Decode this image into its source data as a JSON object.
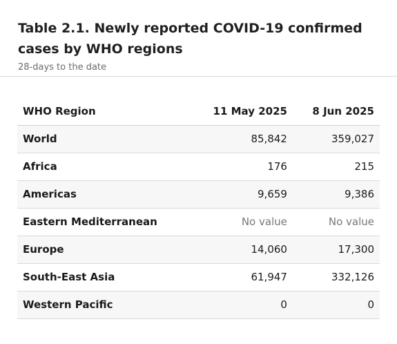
{
  "header": {
    "title": "Table 2.1. Newly reported COVID-19 confirmed cases by WHO regions",
    "subtitle": "28-days to the date"
  },
  "table": {
    "columns": [
      "WHO Region",
      "11 May 2025",
      "8 Jun 2025"
    ],
    "rows": [
      {
        "region": "World",
        "v1": "85,842",
        "v2": "359,027"
      },
      {
        "region": "Africa",
        "v1": "176",
        "v2": "215"
      },
      {
        "region": "Americas",
        "v1": "9,659",
        "v2": "9,386"
      },
      {
        "region": "Eastern Mediterranean",
        "v1": "No value",
        "v2": "No value"
      },
      {
        "region": "Europe",
        "v1": "14,060",
        "v2": "17,300"
      },
      {
        "region": "South-East Asia",
        "v1": "61,947",
        "v2": "332,126"
      },
      {
        "region": "Western Pacific",
        "v1": "0",
        "v2": "0"
      }
    ]
  }
}
